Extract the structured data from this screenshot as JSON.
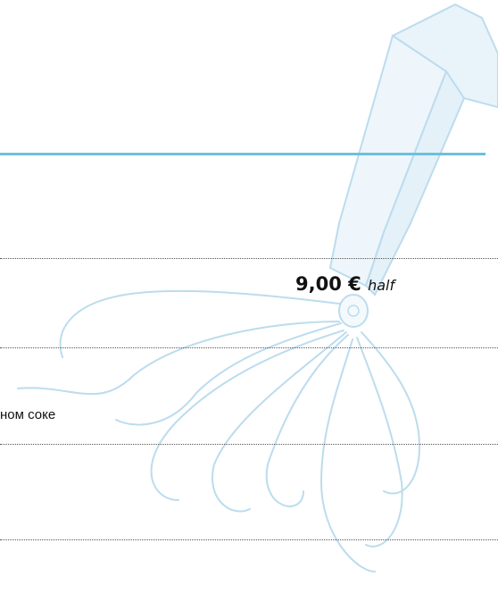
{
  "menu": {
    "items": [
      {
        "price": "9,00 €",
        "portion": "half"
      },
      {
        "description": "ном соке"
      }
    ]
  }
}
